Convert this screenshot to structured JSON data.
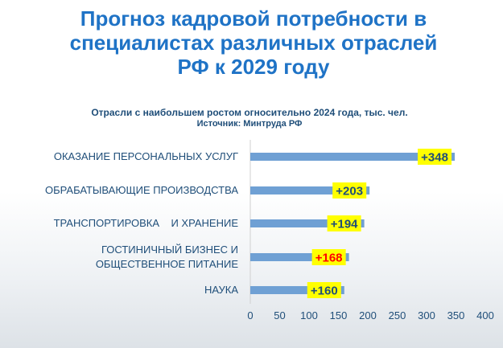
{
  "header": {
    "title": "Прогноз кадровой потребности в\nспециалистах различных отраслей\nРФ к 2029 году",
    "subtitle": "Отрасли с наибольшем ростом огносительно 2024 года, тыс. чел.",
    "source": "Источник: Минтруда РФ"
  },
  "colors": {
    "title": "#1f73c6",
    "bar": "#6fa0d4",
    "label_bg": "#ffff00",
    "label_text": "#1f4e79",
    "label_text_highlight": "#ff0000"
  },
  "chart_data": {
    "type": "bar",
    "orientation": "horizontal",
    "title": "Прогноз кадровой потребности в специалистах различных отраслей РФ к 2029 году",
    "subtitle": "Отрасли с наибольшем ростом огносительно 2024 года, тыс. чел.",
    "categories": [
      [
        "ОКАЗАНИЕ ПЕРСОНАЛЬНЫХ УСЛУГ"
      ],
      [
        "ОБРАБАТЫВАЮЩИЕ ПРОИЗВОДСТВА"
      ],
      [
        "ТРАНСПОРТИРОВКА    И ХРАНЕНИЕ"
      ],
      [
        "ГОСТИНИЧНЫЙ БИЗНЕС И",
        "ОБЩЕСТВЕННОЕ ПИТАНИЕ"
      ],
      [
        "НАУКА"
      ]
    ],
    "values": [
      348,
      203,
      194,
      168,
      160
    ],
    "data_labels": [
      "+348",
      "+203",
      "+194",
      "+168",
      "+160"
    ],
    "highlighted_label_index": 3,
    "xlim": [
      0,
      400
    ],
    "xticks": [
      0,
      50,
      100,
      150,
      200,
      250,
      300,
      350,
      400
    ],
    "grid": false,
    "legend": "none"
  }
}
